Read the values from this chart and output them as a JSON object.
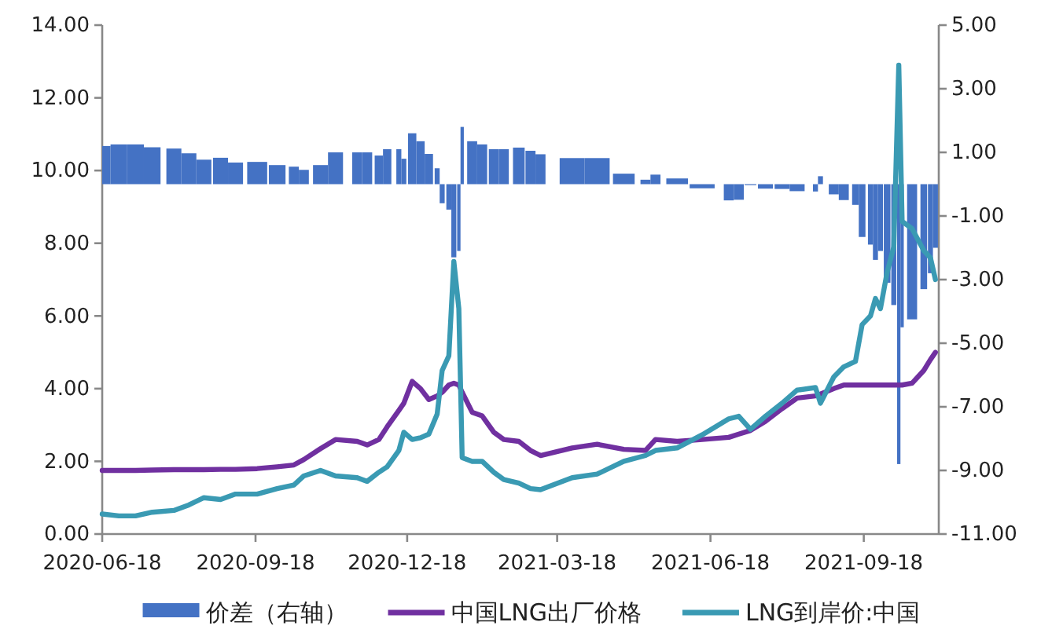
{
  "chart_data": {
    "type": "line",
    "x": [
      "2020-06-18",
      "2020-06-28",
      "2020-07-08",
      "2020-07-18",
      "2020-07-31",
      "2020-08-09",
      "2020-08-18",
      "2020-08-28",
      "2020-09-06",
      "2020-09-19",
      "2020-10-01",
      "2020-10-11",
      "2020-10-17",
      "2020-10-27",
      "2020-11-05",
      "2020-11-18",
      "2020-11-24",
      "2020-12-01",
      "2020-12-06",
      "2020-12-13",
      "2020-12-16",
      "2020-12-21",
      "2020-12-26",
      "2020-12-31",
      "2021-01-05",
      "2021-01-08",
      "2021-01-12",
      "2021-01-15",
      "2021-01-18",
      "2021-01-20",
      "2021-01-26",
      "2021-02-01",
      "2021-02-08",
      "2021-02-14",
      "2021-02-23",
      "2021-03-02",
      "2021-03-08",
      "2021-03-27",
      "2021-04-11",
      "2021-04-27",
      "2021-05-10",
      "2021-05-16",
      "2021-05-29",
      "2021-06-13",
      "2021-06-29",
      "2021-07-05",
      "2021-07-12",
      "2021-07-21",
      "2021-07-31",
      "2021-08-09",
      "2021-08-20",
      "2021-08-23",
      "2021-08-31",
      "2021-09-06",
      "2021-09-13",
      "2021-09-17",
      "2021-09-22",
      "2021-09-25",
      "2021-09-28",
      "2021-10-02",
      "2021-10-06",
      "2021-10-09",
      "2021-10-11",
      "2021-10-17",
      "2021-10-24",
      "2021-10-28",
      "2021-10-31"
    ],
    "series": [
      {
        "name": "价差（右轴）",
        "type": "bar",
        "axis": "y2",
        "color": "#4472c4",
        "values": [
          1.2,
          1.25,
          1.25,
          1.16,
          1.12,
          0.97,
          0.77,
          0.83,
          0.68,
          0.7,
          0.6,
          0.55,
          0.45,
          0.6,
          1.0,
          1.0,
          1.0,
          0.9,
          1.1,
          1.1,
          0.8,
          1.6,
          1.35,
          0.95,
          0.5,
          -0.6,
          -0.8,
          -2.3,
          -2.1,
          1.8,
          1.35,
          1.25,
          1.1,
          1.1,
          1.15,
          1.05,
          0.94,
          0.82,
          0.82,
          0.33,
          0.14,
          0.3,
          0.18,
          -0.13,
          -0.51,
          -0.49,
          -0.03,
          -0.14,
          -0.15,
          -0.22,
          -0.23,
          0.25,
          -0.32,
          -0.5,
          -0.65,
          -1.66,
          -1.9,
          -2.38,
          -2.1,
          -3.1,
          -3.8,
          -8.8,
          -4.5,
          -4.25,
          -3.3,
          -2.8,
          -2.0
        ]
      },
      {
        "name": "中国LNG出厂价格",
        "color": "#7030a0",
        "values": [
          1.75,
          1.75,
          1.75,
          1.76,
          1.77,
          1.77,
          1.77,
          1.78,
          1.78,
          1.8,
          1.85,
          1.9,
          2.05,
          2.35,
          2.6,
          2.55,
          2.45,
          2.6,
          2.95,
          3.4,
          3.6,
          4.2,
          4.0,
          3.7,
          3.8,
          3.9,
          4.1,
          4.15,
          4.1,
          3.9,
          3.35,
          3.25,
          2.8,
          2.6,
          2.55,
          2.3,
          2.16,
          2.37,
          2.47,
          2.33,
          2.3,
          2.6,
          2.55,
          2.6,
          2.66,
          2.75,
          2.85,
          3.1,
          3.45,
          3.74,
          3.8,
          3.85,
          4.0,
          4.1,
          4.1,
          4.1,
          4.1,
          4.1,
          4.1,
          4.1,
          4.1,
          4.1,
          4.1,
          4.15,
          4.5,
          4.8,
          5.0
        ]
      },
      {
        "name": "LNG到岸价:中国",
        "color": "#3a9ab3",
        "values": [
          0.55,
          0.5,
          0.5,
          0.6,
          0.65,
          0.8,
          1.0,
          0.95,
          1.1,
          1.1,
          1.25,
          1.35,
          1.6,
          1.75,
          1.6,
          1.55,
          1.45,
          1.7,
          1.85,
          2.3,
          2.8,
          2.6,
          2.65,
          2.75,
          3.3,
          4.5,
          4.9,
          7.5,
          6.2,
          2.1,
          2.0,
          2.0,
          1.7,
          1.5,
          1.4,
          1.25,
          1.22,
          1.55,
          1.65,
          2.0,
          2.16,
          2.3,
          2.37,
          2.73,
          3.17,
          3.24,
          2.88,
          3.24,
          3.6,
          3.96,
          4.03,
          3.6,
          4.32,
          4.6,
          4.75,
          5.76,
          6.0,
          6.48,
          6.2,
          7.2,
          7.9,
          12.9,
          8.6,
          8.4,
          7.8,
          7.6,
          7.0
        ]
      }
    ],
    "xlim": [
      "2020-06-18",
      "2021-11-02"
    ],
    "xticks": [
      "2020-06-18",
      "2020-09-18",
      "2020-12-18",
      "2021-03-18",
      "2021-06-18",
      "2021-09-18"
    ],
    "ylim": [
      0,
      14
    ],
    "yticks": [
      {
        "value": 0,
        "label": "0.00"
      },
      {
        "value": 2,
        "label": "2.00"
      },
      {
        "value": 4,
        "label": "4.00"
      },
      {
        "value": 6,
        "label": "6.00"
      },
      {
        "value": 8,
        "label": "8.00"
      },
      {
        "value": 10,
        "label": "10.00"
      },
      {
        "value": 12,
        "label": "12.00"
      },
      {
        "value": 14,
        "label": "14.00"
      }
    ],
    "y2lim": [
      -11,
      5
    ],
    "y2ticks": [
      {
        "value": -11,
        "label": "-11.00"
      },
      {
        "value": -9,
        "label": "-9.00"
      },
      {
        "value": -7,
        "label": "-7.00"
      },
      {
        "value": -5,
        "label": "-5.00"
      },
      {
        "value": -3,
        "label": "-3.00"
      },
      {
        "value": -1,
        "label": "-1.00"
      },
      {
        "value": 1,
        "label": "1.00"
      },
      {
        "value": 3,
        "label": "3.00"
      },
      {
        "value": 5,
        "label": "5.00"
      }
    ],
    "legend": "bottom"
  }
}
